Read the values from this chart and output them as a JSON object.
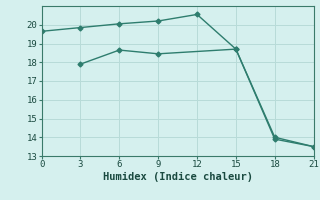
{
  "xlabel": "Humidex (Indice chaleur)",
  "bg_color": "#d5f0ee",
  "line_color": "#2e7d6e",
  "marker": "D",
  "markersize": 2.5,
  "linewidth": 1.0,
  "series1_x": [
    0,
    3,
    6,
    9,
    12,
    15,
    18,
    21
  ],
  "series1_y": [
    19.65,
    19.85,
    20.05,
    20.2,
    20.55,
    18.7,
    14.0,
    13.5
  ],
  "series2_x": [
    3,
    6,
    9,
    15,
    18,
    21
  ],
  "series2_y": [
    17.9,
    18.65,
    18.45,
    18.7,
    13.9,
    13.5
  ],
  "xlim": [
    0,
    21
  ],
  "ylim": [
    13,
    21
  ],
  "xticks": [
    0,
    3,
    6,
    9,
    12,
    15,
    18,
    21
  ],
  "yticks": [
    13,
    14,
    15,
    16,
    17,
    18,
    19,
    20
  ],
  "grid_color": "#b8dbd8",
  "tick_fontsize": 6.5,
  "label_fontsize": 7.5
}
